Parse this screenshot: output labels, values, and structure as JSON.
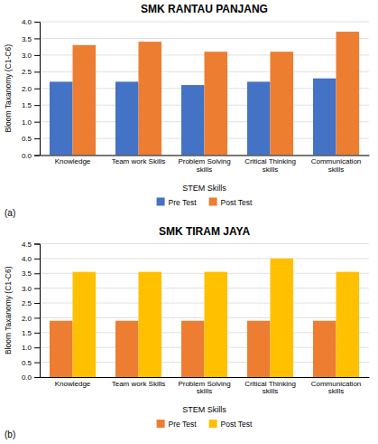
{
  "chart_data": [
    {
      "type": "bar",
      "title": "SMK RANTAU PANJANG",
      "categories": [
        "Knowledge",
        "Team work Skills",
        "Problem Solving\nskills",
        "Critical Thinking\nskills",
        "Communication\nskills"
      ],
      "series": [
        {
          "name": "Pre Test",
          "color": "#4472c4",
          "values": [
            2.2,
            2.2,
            2.1,
            2.2,
            2.3
          ]
        },
        {
          "name": "Post Test",
          "color": "#ed7d31",
          "values": [
            3.3,
            3.4,
            3.1,
            3.1,
            3.7
          ]
        }
      ],
      "ylabel": "Bloom Taxanomy (C1-C6)",
      "xlabel": "STEM Skills",
      "ylim": [
        0,
        4
      ],
      "yticks": [
        {
          "value": 0,
          "label": "0.0"
        },
        0.5,
        {
          "value": 1,
          "label": "1.0"
        },
        1.5,
        {
          "value": 2,
          "label": "2.0"
        },
        2.5,
        {
          "value": 3,
          "label": "3.0"
        },
        3.5,
        {
          "value": 4,
          "label": "4.0"
        }
      ],
      "grid": true,
      "legend": "bottom",
      "annotations": [
        "(a)"
      ]
    },
    {
      "type": "bar",
      "title": "SMK TIRAM JAYA",
      "categories": [
        "Knowledge",
        "Team work Skills",
        "Problem Solving\nskills",
        "Critical Thinking\nskills",
        "Communication\nskills"
      ],
      "series": [
        {
          "name": "Pre Test",
          "color": "#ed7d31",
          "values": [
            1.9,
            1.9,
            1.9,
            1.9,
            1.9
          ]
        },
        {
          "name": "Post Test",
          "color": "#ffc000",
          "values": [
            3.55,
            3.55,
            3.55,
            4.0,
            3.55
          ]
        }
      ],
      "ylabel": "Bloom Taxanomy (C1-C6)",
      "xlabel": "STEM Skills",
      "ylim": [
        0,
        4.5
      ],
      "yticks": [
        {
          "value": 0,
          "label": "0.0"
        },
        0.5,
        {
          "value": 1,
          "label": "1.0"
        },
        1.5,
        {
          "value": 2,
          "label": "2.0"
        },
        2.5,
        {
          "value": 3,
          "label": "3.0"
        },
        3.5,
        {
          "value": 4,
          "label": "4.0"
        },
        4.5
      ],
      "grid": true,
      "legend": "bottom",
      "annotations": [
        "(b)"
      ]
    }
  ]
}
